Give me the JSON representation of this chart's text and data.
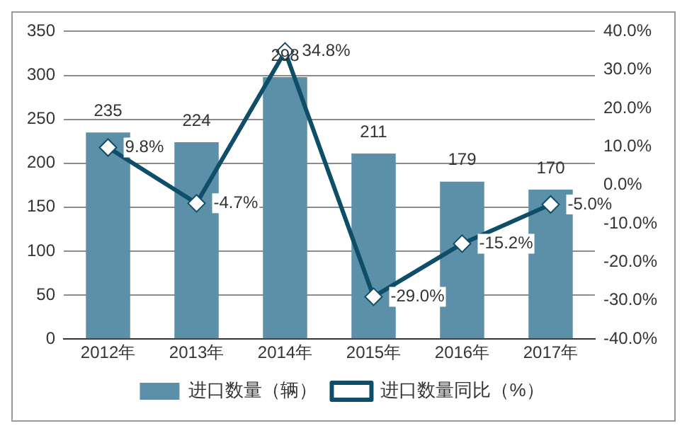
{
  "chart_data": {
    "type": "bar",
    "categories": [
      "2012年",
      "2013年",
      "2014年",
      "2015年",
      "2016年",
      "2017年"
    ],
    "series": [
      {
        "name": "进口数量（辆）",
        "color": "#5b90a8",
        "values": [
          235,
          224,
          298,
          211,
          179,
          170
        ],
        "value_labels": [
          "235",
          "224",
          "298",
          "211",
          "179",
          "170"
        ]
      },
      {
        "name": "进口数量同比（%）",
        "type": "line",
        "axis": "y2",
        "color": "#0e4e68",
        "marker": "diamond",
        "values": [
          9.8,
          -4.7,
          34.8,
          -29.0,
          -15.2,
          -5.0
        ],
        "value_labels": [
          "9.8%",
          "-4.7%",
          "34.8%",
          "-29.0%",
          "-15.2%",
          "-5.0%"
        ]
      }
    ],
    "ylim": [
      0,
      350
    ],
    "yticks": [
      0,
      50,
      100,
      150,
      200,
      250,
      300,
      350
    ],
    "y2lim": [
      -40,
      40
    ],
    "y2ticks": [
      {
        "value": -40,
        "label": "-40.0%"
      },
      {
        "value": -30,
        "label": "-30.0%"
      },
      {
        "value": -20,
        "label": "-20.0%"
      },
      {
        "value": -10,
        "label": "-10.0%"
      },
      {
        "value": 0,
        "label": "0.0%"
      },
      {
        "value": 10,
        "label": "10.0%"
      },
      {
        "value": 20,
        "label": "20.0%"
      },
      {
        "value": 30,
        "label": "30.0%"
      },
      {
        "value": 40,
        "label": "40.0%"
      }
    ],
    "grid": "y",
    "legend": "bottom"
  }
}
